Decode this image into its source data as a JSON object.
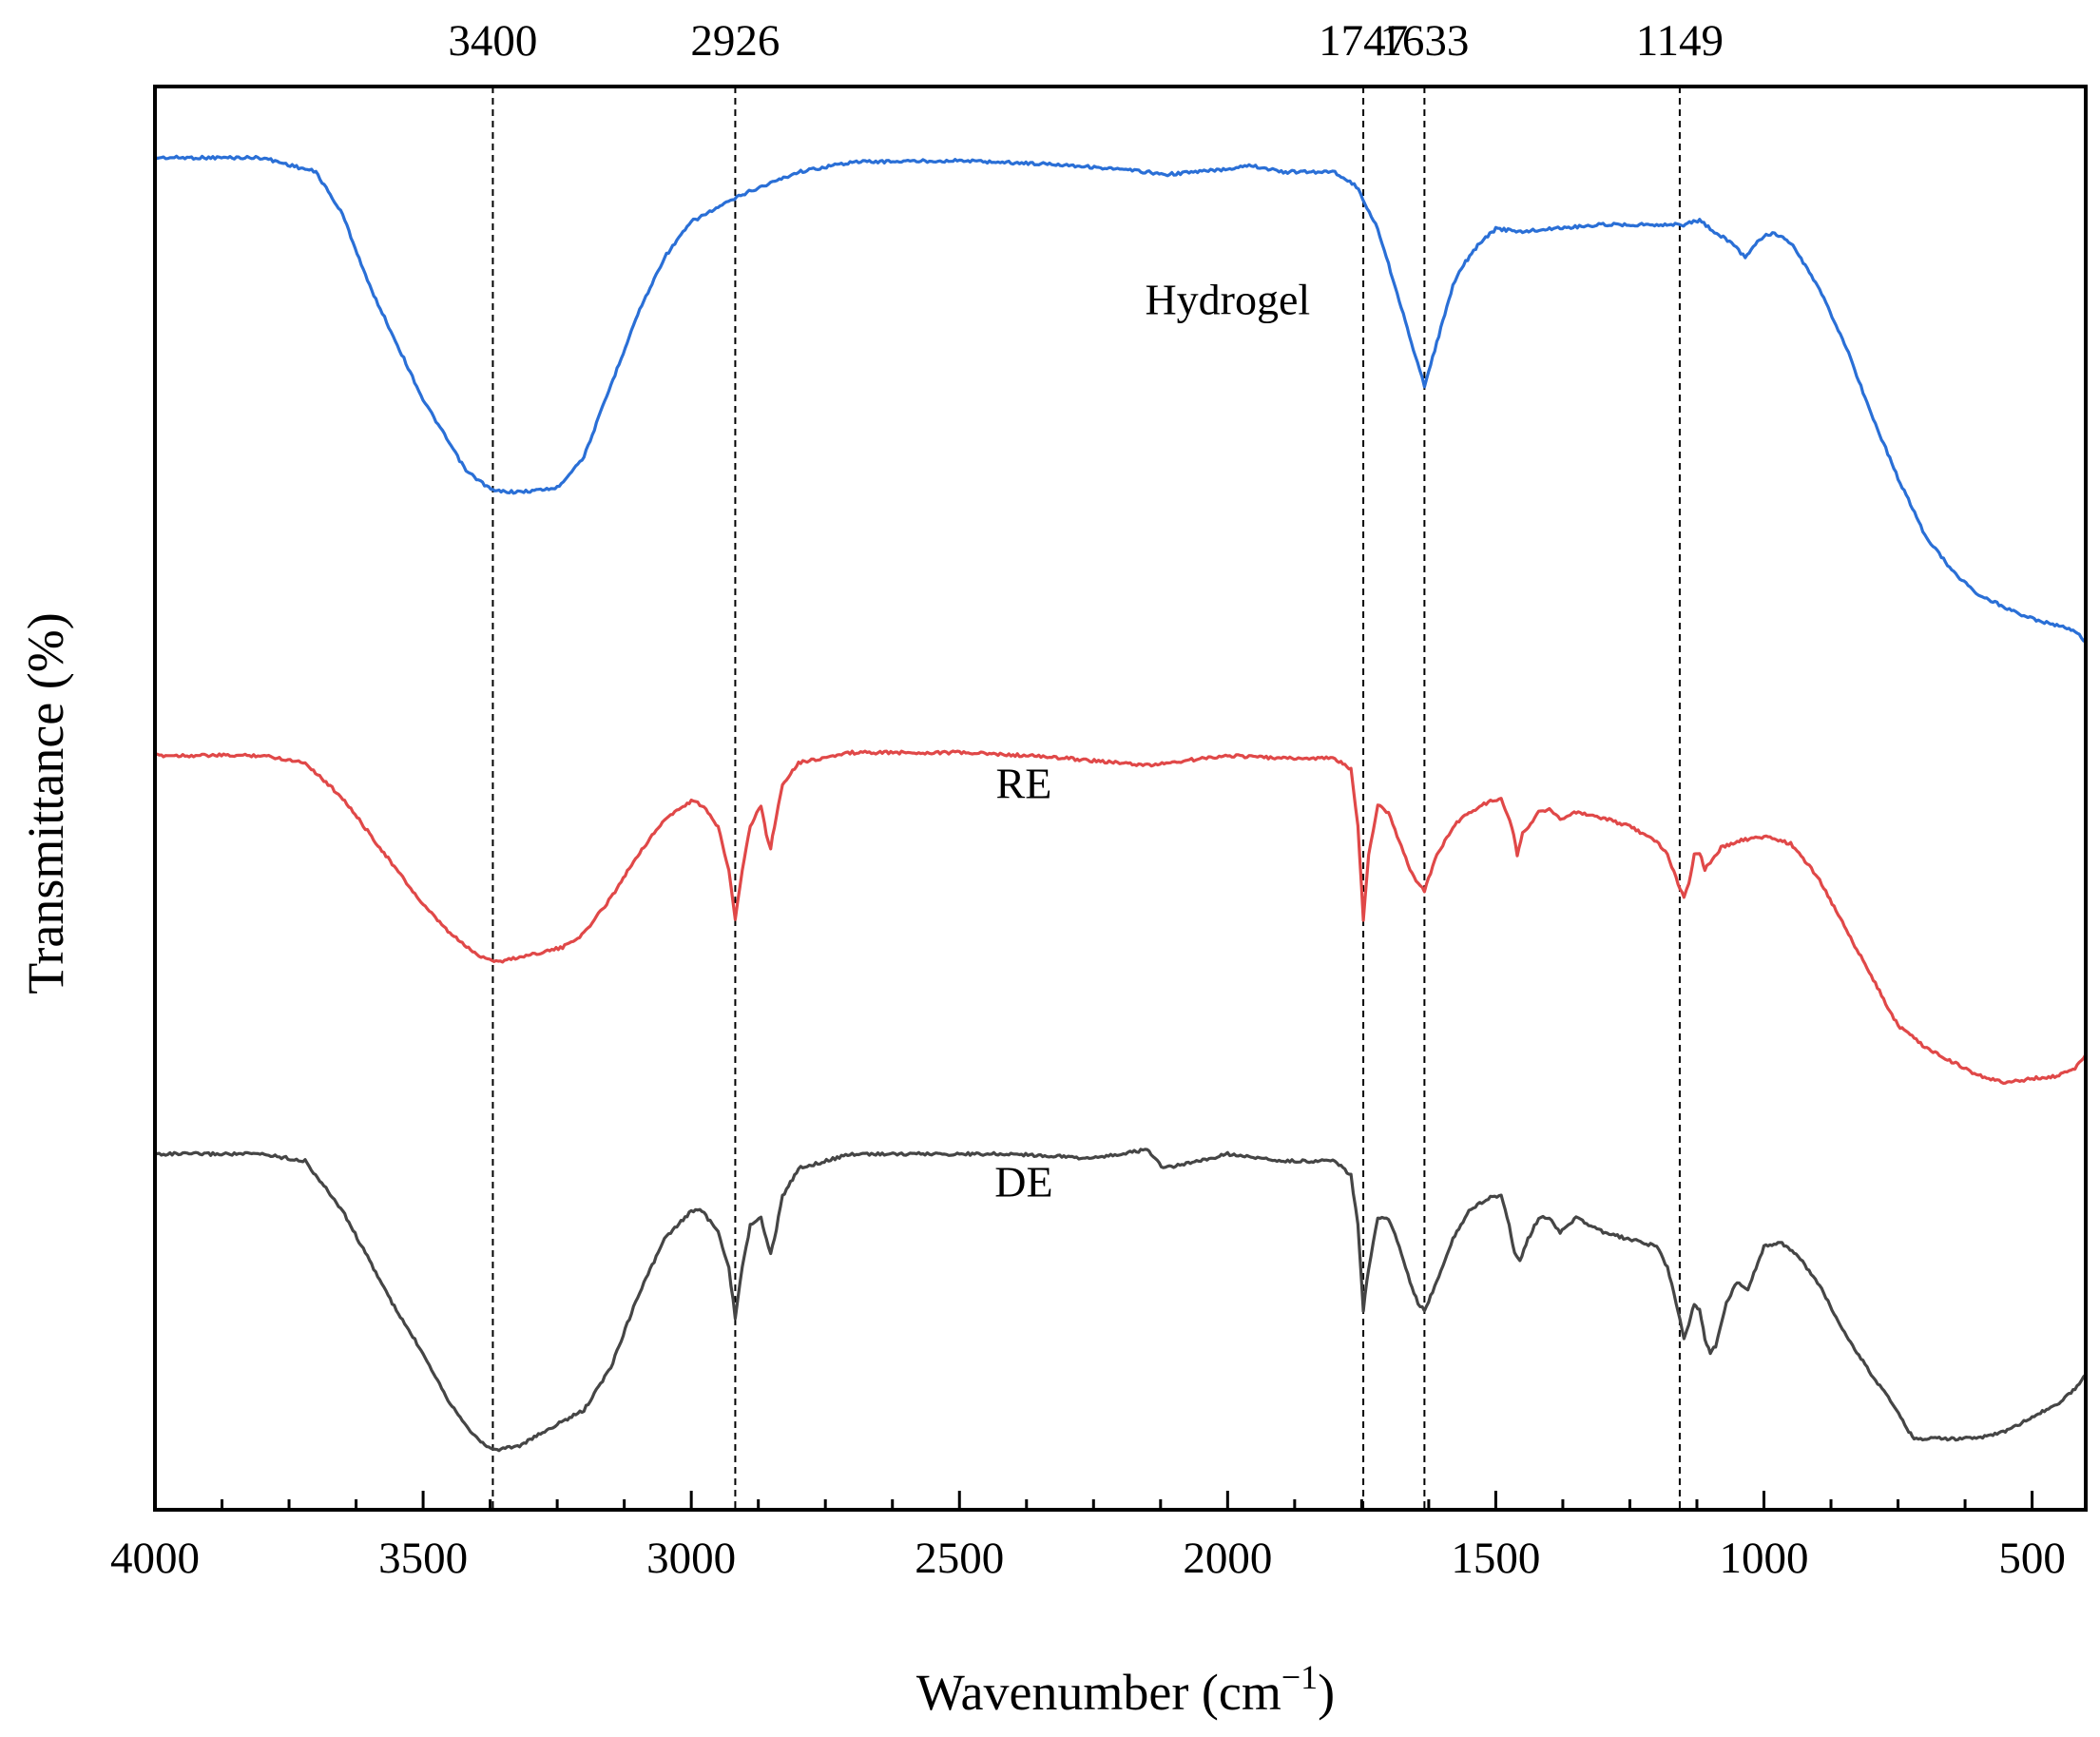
{
  "chart_data": {
    "type": "line",
    "title": "",
    "xlabel": "Wavenumber (cm⁻¹)",
    "xlabel_base": "Wavenumber (cm",
    "xlabel_sup": "−1",
    "xlabel_close": ")",
    "ylabel": "Transmittance (%)",
    "xlim": [
      4000,
      400
    ],
    "x_reversed": true,
    "y_ticks_shown": false,
    "x_ticks": [
      4000,
      3500,
      3000,
      2500,
      2000,
      1500,
      1000,
      500
    ],
    "x_tick_labels": [
      "4000",
      "3500",
      "3000",
      "2500",
      "2000",
      "1500",
      "1000",
      "500"
    ],
    "peak_markers": [
      {
        "x": 3370,
        "label": "3400"
      },
      {
        "x": 2918,
        "label": "2926"
      },
      {
        "x": 1747,
        "label": "1747"
      },
      {
        "x": 1633,
        "label": "1633"
      },
      {
        "x": 1157,
        "label": "1149"
      }
    ],
    "series": [
      {
        "name": "Hydrogel",
        "color": "#2a6fd6",
        "label_at": [
          2000,
          84
        ],
        "points": [
          [
            4000,
            95
          ],
          [
            3800,
            95
          ],
          [
            3700,
            94
          ],
          [
            3650,
            91
          ],
          [
            3600,
            86
          ],
          [
            3500,
            78
          ],
          [
            3420,
            73
          ],
          [
            3370,
            71.6
          ],
          [
            3320,
            71.5
          ],
          [
            3250,
            71.8
          ],
          [
            3200,
            74
          ],
          [
            3150,
            79
          ],
          [
            3100,
            84
          ],
          [
            3050,
            88
          ],
          [
            3000,
            90.5
          ],
          [
            2950,
            91.5
          ],
          [
            2900,
            92.5
          ],
          [
            2800,
            94
          ],
          [
            2700,
            94.7
          ],
          [
            2500,
            94.8
          ],
          [
            2300,
            94.5
          ],
          [
            2150,
            94
          ],
          [
            2120,
            93.8
          ],
          [
            2000,
            94.2
          ],
          [
            1960,
            94.5
          ],
          [
            1900,
            94
          ],
          [
            1800,
            94
          ],
          [
            1760,
            93
          ],
          [
            1720,
            90
          ],
          [
            1680,
            85
          ],
          [
            1650,
            81
          ],
          [
            1633,
            79
          ],
          [
            1610,
            82
          ],
          [
            1580,
            86
          ],
          [
            1560,
            87.5
          ],
          [
            1530,
            89
          ],
          [
            1500,
            90
          ],
          [
            1450,
            89.8
          ],
          [
            1400,
            90
          ],
          [
            1300,
            90.3
          ],
          [
            1200,
            90.3
          ],
          [
            1150,
            90.3
          ],
          [
            1120,
            90.6
          ],
          [
            1100,
            90
          ],
          [
            1060,
            89
          ],
          [
            1035,
            88
          ],
          [
            1020,
            88.8
          ],
          [
            1000,
            89.5
          ],
          [
            980,
            89.7
          ],
          [
            950,
            89
          ],
          [
            900,
            86
          ],
          [
            850,
            82
          ],
          [
            800,
            77
          ],
          [
            750,
            72.5
          ],
          [
            700,
            68.5
          ],
          [
            650,
            66
          ],
          [
            600,
            64.3
          ],
          [
            550,
            63.4
          ],
          [
            500,
            62.6
          ],
          [
            450,
            62.1
          ],
          [
            420,
            61.7
          ],
          [
            400,
            61
          ]
        ]
      },
      {
        "name": "RE",
        "color": "#e04848",
        "label_at": [
          2380,
          50
        ],
        "points": [
          [
            4000,
            53
          ],
          [
            3800,
            53
          ],
          [
            3720,
            52.5
          ],
          [
            3650,
            50
          ],
          [
            3600,
            47.5
          ],
          [
            3550,
            45
          ],
          [
            3500,
            42.5
          ],
          [
            3450,
            40.5
          ],
          [
            3400,
            39
          ],
          [
            3360,
            38.5
          ],
          [
            3300,
            39
          ],
          [
            3240,
            39.5
          ],
          [
            3200,
            40.5
          ],
          [
            3150,
            43
          ],
          [
            3100,
            46
          ],
          [
            3050,
            48.5
          ],
          [
            3000,
            49.8
          ],
          [
            2980,
            49.5
          ],
          [
            2950,
            48
          ],
          [
            2930,
            45
          ],
          [
            2918,
            41.5
          ],
          [
            2905,
            45
          ],
          [
            2890,
            48
          ],
          [
            2870,
            49.5
          ],
          [
            2860,
            47.5
          ],
          [
            2852,
            46.5
          ],
          [
            2845,
            48
          ],
          [
            2830,
            51
          ],
          [
            2800,
            52.5
          ],
          [
            2700,
            53.2
          ],
          [
            2500,
            53.2
          ],
          [
            2380,
            53
          ],
          [
            2300,
            52.8
          ],
          [
            2150,
            52.3
          ],
          [
            2000,
            53
          ],
          [
            1900,
            52.8
          ],
          [
            1800,
            52.8
          ],
          [
            1770,
            52
          ],
          [
            1757,
            48
          ],
          [
            1747,
            41.5
          ],
          [
            1737,
            46
          ],
          [
            1720,
            49.5
          ],
          [
            1700,
            49
          ],
          [
            1680,
            47
          ],
          [
            1660,
            45
          ],
          [
            1645,
            44
          ],
          [
            1633,
            43.5
          ],
          [
            1610,
            46
          ],
          [
            1580,
            48
          ],
          [
            1550,
            49
          ],
          [
            1510,
            49.8
          ],
          [
            1490,
            50
          ],
          [
            1470,
            48
          ],
          [
            1460,
            46
          ],
          [
            1450,
            47.5
          ],
          [
            1420,
            49
          ],
          [
            1400,
            49.3
          ],
          [
            1380,
            48.5
          ],
          [
            1350,
            49
          ],
          [
            1300,
            48.6
          ],
          [
            1250,
            48
          ],
          [
            1200,
            47
          ],
          [
            1180,
            46
          ],
          [
            1160,
            44
          ],
          [
            1149,
            43
          ],
          [
            1140,
            44
          ],
          [
            1130,
            46
          ],
          [
            1120,
            46.2
          ],
          [
            1110,
            45
          ],
          [
            1100,
            45.5
          ],
          [
            1080,
            46.5
          ],
          [
            1050,
            47
          ],
          [
            1000,
            47.3
          ],
          [
            950,
            46.8
          ],
          [
            900,
            44.5
          ],
          [
            850,
            41
          ],
          [
            800,
            37.5
          ],
          [
            750,
            34
          ],
          [
            720,
            33.2
          ],
          [
            700,
            32.5
          ],
          [
            650,
            31.5
          ],
          [
            600,
            30.5
          ],
          [
            550,
            30
          ],
          [
            500,
            30.3
          ],
          [
            450,
            30.5
          ],
          [
            420,
            31
          ],
          [
            400,
            32
          ]
        ]
      },
      {
        "name": "DE",
        "color": "#454545",
        "label_at": [
          2380,
          22
        ],
        "points": [
          [
            4000,
            25
          ],
          [
            3800,
            25
          ],
          [
            3720,
            24.5
          ],
          [
            3650,
            21
          ],
          [
            3600,
            17.5
          ],
          [
            3550,
            14
          ],
          [
            3500,
            11
          ],
          [
            3450,
            7.5
          ],
          [
            3400,
            5
          ],
          [
            3370,
            4.2
          ],
          [
            3320,
            4.5
          ],
          [
            3250,
            6
          ],
          [
            3200,
            7
          ],
          [
            3150,
            10
          ],
          [
            3100,
            15
          ],
          [
            3050,
            19
          ],
          [
            3000,
            21
          ],
          [
            2980,
            21
          ],
          [
            2950,
            19.5
          ],
          [
            2930,
            17
          ],
          [
            2918,
            13.5
          ],
          [
            2905,
            17
          ],
          [
            2890,
            20
          ],
          [
            2870,
            20.5
          ],
          [
            2860,
            19
          ],
          [
            2852,
            18
          ],
          [
            2845,
            19
          ],
          [
            2830,
            22
          ],
          [
            2800,
            24
          ],
          [
            2700,
            25
          ],
          [
            2400,
            25
          ],
          [
            2250,
            24.7
          ],
          [
            2150,
            25.3
          ],
          [
            2120,
            24
          ],
          [
            2050,
            24.5
          ],
          [
            2000,
            25
          ],
          [
            1900,
            24.5
          ],
          [
            1800,
            24.5
          ],
          [
            1770,
            23.5
          ],
          [
            1757,
            20
          ],
          [
            1747,
            14
          ],
          [
            1737,
            17
          ],
          [
            1720,
            20.5
          ],
          [
            1700,
            20.5
          ],
          [
            1680,
            18.5
          ],
          [
            1660,
            16
          ],
          [
            1645,
            14.5
          ],
          [
            1633,
            14
          ],
          [
            1610,
            16
          ],
          [
            1580,
            19
          ],
          [
            1550,
            21
          ],
          [
            1510,
            22
          ],
          [
            1490,
            22
          ],
          [
            1475,
            20
          ],
          [
            1465,
            18
          ],
          [
            1455,
            17.5
          ],
          [
            1440,
            19
          ],
          [
            1420,
            20.5
          ],
          [
            1400,
            20.5
          ],
          [
            1380,
            19.5
          ],
          [
            1350,
            20.5
          ],
          [
            1300,
            19.5
          ],
          [
            1250,
            19
          ],
          [
            1200,
            18.5
          ],
          [
            1180,
            17
          ],
          [
            1160,
            14
          ],
          [
            1149,
            12
          ],
          [
            1140,
            13
          ],
          [
            1130,
            14.5
          ],
          [
            1120,
            14
          ],
          [
            1110,
            12
          ],
          [
            1100,
            11
          ],
          [
            1090,
            11.5
          ],
          [
            1070,
            14.5
          ],
          [
            1050,
            16
          ],
          [
            1030,
            15.5
          ],
          [
            1000,
            18.5
          ],
          [
            970,
            18.8
          ],
          [
            940,
            18
          ],
          [
            900,
            16
          ],
          [
            850,
            12.5
          ],
          [
            800,
            9.5
          ],
          [
            760,
            7.5
          ],
          [
            730,
            5.5
          ],
          [
            720,
            5
          ],
          [
            700,
            5
          ],
          [
            650,
            5
          ],
          [
            600,
            5
          ],
          [
            550,
            5.5
          ],
          [
            500,
            6.5
          ],
          [
            450,
            7.5
          ],
          [
            420,
            8.5
          ],
          [
            400,
            9.5
          ]
        ]
      }
    ]
  }
}
